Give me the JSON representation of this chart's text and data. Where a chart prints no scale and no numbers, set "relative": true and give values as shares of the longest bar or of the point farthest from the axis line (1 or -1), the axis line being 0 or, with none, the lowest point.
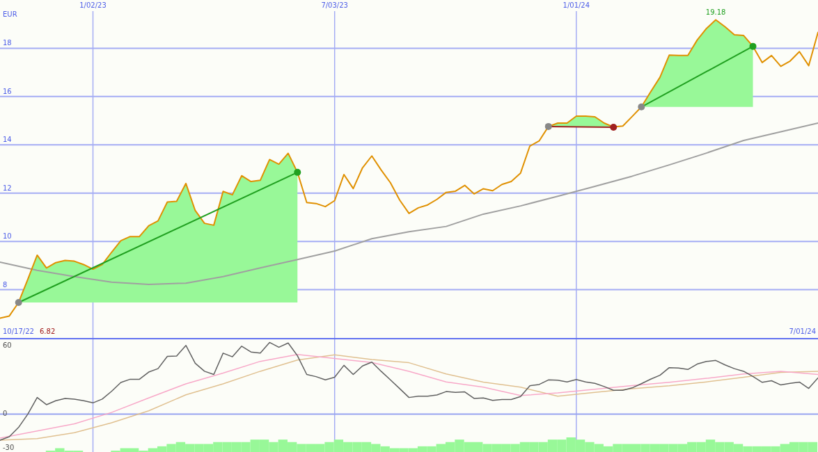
{
  "chart_data": [
    {
      "type": "line",
      "ylabel": "EUR",
      "xlim": [
        "2022-10-24",
        "2024-07-01"
      ],
      "xticks": [
        {
          "value": "2023-01-02",
          "label": "1/02/23"
        },
        {
          "value": "2023-07-03",
          "label": "7/03/23"
        },
        {
          "value": "2024-01-01",
          "label": "1/01/24"
        }
      ],
      "ylim": [
        6,
        20
      ],
      "yticks": [
        8,
        10,
        12,
        14,
        16,
        18
      ],
      "grid": true,
      "annotations": [
        "10/17/22",
        "6.82",
        "7/01/24",
        {
          "text": "19.18",
          "x": "2024-04-15",
          "y": 19.18
        }
      ],
      "x": [
        "2022-10-24",
        "2022-10-31",
        "2022-11-07",
        "2022-11-14",
        "2022-11-21",
        "2022-11-28",
        "2022-12-05",
        "2022-12-12",
        "2022-12-19",
        "2022-12-26",
        "2023-01-02",
        "2023-01-09",
        "2023-01-16",
        "2023-01-23",
        "2023-01-30",
        "2023-02-06",
        "2023-02-13",
        "2023-02-20",
        "2023-02-27",
        "2023-03-06",
        "2023-03-13",
        "2023-03-20",
        "2023-03-27",
        "2023-04-03",
        "2023-04-10",
        "2023-04-17",
        "2023-04-24",
        "2023-05-01",
        "2023-05-08",
        "2023-05-15",
        "2023-05-22",
        "2023-05-29",
        "2023-06-05",
        "2023-06-12",
        "2023-06-19",
        "2023-06-26",
        "2023-07-03",
        "2023-07-10",
        "2023-07-17",
        "2023-07-24",
        "2023-07-31",
        "2023-08-07",
        "2023-08-14",
        "2023-08-21",
        "2023-08-28",
        "2023-09-04",
        "2023-09-11",
        "2023-09-18",
        "2023-09-25",
        "2023-10-02",
        "2023-10-09",
        "2023-10-16",
        "2023-10-23",
        "2023-10-30",
        "2023-11-06",
        "2023-11-13",
        "2023-11-20",
        "2023-11-27",
        "2023-12-04",
        "2023-12-11",
        "2023-12-18",
        "2023-12-25",
        "2024-01-01",
        "2024-01-08",
        "2024-01-15",
        "2024-01-22",
        "2024-01-29",
        "2024-02-05",
        "2024-02-12",
        "2024-02-19",
        "2024-02-26",
        "2024-03-04",
        "2024-03-11",
        "2024-03-18",
        "2024-03-25",
        "2024-04-01",
        "2024-04-08",
        "2024-04-15",
        "2024-04-22",
        "2024-04-29",
        "2024-05-06",
        "2024-05-13",
        "2024-05-20",
        "2024-05-27",
        "2024-06-03",
        "2024-06-10",
        "2024-06-17",
        "2024-06-24",
        "2024-07-01"
      ],
      "series": [
        {
          "type": "line",
          "color": "#a0a0a0",
          "x": [
            "2022-10-24",
            "2022-11-21",
            "2022-12-19",
            "2023-01-16",
            "2023-02-13",
            "2023-03-13",
            "2023-04-10",
            "2023-05-08",
            "2023-06-05",
            "2023-07-03",
            "2023-07-31",
            "2023-08-28",
            "2023-09-25",
            "2023-10-23",
            "2023-11-20",
            "2023-12-18",
            "2024-01-15",
            "2024-02-12",
            "2024-03-11",
            "2024-04-08",
            "2024-05-06",
            "2024-06-03",
            "2024-07-01"
          ],
          "values": [
            9.14,
            8.8,
            8.54,
            8.31,
            8.22,
            8.27,
            8.54,
            8.9,
            9.25,
            9.6,
            10.11,
            10.4,
            10.62,
            11.13,
            11.47,
            11.87,
            12.28,
            12.7,
            13.17,
            13.66,
            14.18,
            14.54,
            14.9
          ]
        },
        {
          "color": "#e09000",
          "values": [
            6.82,
            6.91,
            7.47,
            8.44,
            9.43,
            8.9,
            9.12,
            9.21,
            9.18,
            9.04,
            8.85,
            9.04,
            9.55,
            10.03,
            10.2,
            10.2,
            10.65,
            10.85,
            11.63,
            11.66,
            12.4,
            11.28,
            10.75,
            10.67,
            12.07,
            11.93,
            12.72,
            12.48,
            12.53,
            13.39,
            13.2,
            13.65,
            12.86,
            11.61,
            11.57,
            11.44,
            11.69,
            12.77,
            12.19,
            13.05,
            13.54,
            12.96,
            12.43,
            11.71,
            11.16,
            11.39,
            11.51,
            11.74,
            12.03,
            12.08,
            12.32,
            11.97,
            12.18,
            12.1,
            12.36,
            12.48,
            12.83,
            13.95,
            14.16,
            14.76,
            14.9,
            14.9,
            15.19,
            15.19,
            15.16,
            14.9,
            14.74,
            14.78,
            15.17,
            15.57,
            16.2,
            16.8,
            17.72,
            17.7,
            17.7,
            18.34,
            18.82,
            19.18,
            18.89,
            18.56,
            18.53,
            18.08,
            17.41,
            17.7,
            17.25,
            17.47,
            17.86,
            17.28,
            18.66
          ],
          "lower": [
            null,
            null,
            7.47,
            7.47,
            7.47,
            7.47,
            7.47,
            7.47,
            7.47,
            7.47,
            7.47,
            7.47,
            7.47,
            7.47,
            7.47,
            7.47,
            7.47,
            7.47,
            7.47,
            7.47,
            7.47,
            7.47,
            7.47,
            7.47,
            7.47,
            7.47,
            7.47,
            7.47,
            7.47,
            7.47,
            7.47,
            7.47,
            7.47,
            null,
            null,
            null,
            null,
            null,
            null,
            null,
            null,
            null,
            null,
            null,
            null,
            null,
            null,
            null,
            null,
            null,
            null,
            null,
            null,
            null,
            null,
            null,
            null,
            null,
            null,
            14.76,
            14.76,
            14.76,
            14.76,
            14.76,
            14.76,
            14.76,
            14.76,
            null,
            null,
            15.57,
            15.57,
            15.57,
            15.57,
            15.57,
            15.57,
            15.57,
            15.57,
            15.57,
            15.57,
            15.57,
            15.57,
            15.57,
            null,
            null,
            null,
            null,
            null,
            null,
            null
          ],
          "upper": [
            null,
            null,
            7.47,
            8.44,
            9.43,
            8.9,
            9.12,
            9.21,
            9.18,
            9.04,
            8.85,
            9.04,
            9.55,
            10.03,
            10.2,
            10.2,
            10.65,
            10.85,
            11.63,
            11.66,
            12.4,
            11.28,
            10.75,
            10.67,
            12.07,
            11.93,
            12.72,
            12.48,
            12.53,
            13.39,
            13.2,
            13.65,
            12.86,
            null,
            null,
            null,
            null,
            null,
            null,
            null,
            null,
            null,
            null,
            null,
            null,
            null,
            null,
            null,
            null,
            null,
            null,
            null,
            null,
            null,
            null,
            null,
            null,
            null,
            null,
            14.76,
            14.9,
            14.9,
            15.19,
            15.19,
            15.16,
            14.9,
            14.74,
            null,
            null,
            15.57,
            16.2,
            16.8,
            17.72,
            17.7,
            17.7,
            18.34,
            18.82,
            19.18,
            18.89,
            18.56,
            18.53,
            18.08,
            null,
            null,
            null,
            null,
            null,
            null,
            null
          ]
        },
        {
          "type": "line",
          "color": "#20a020",
          "marker": "circle",
          "x": [
            "2022-11-07",
            "2023-06-05",
            "2023-09-25",
            "2024-02-19",
            "2024-05-13"
          ],
          "values": [
            7.47,
            12.86,
            null,
            15.57,
            18.08
          ]
        },
        {
          "type": "line",
          "color": "#a02020",
          "marker": "circle",
          "x": [
            "2023-12-11",
            "2024-01-29"
          ],
          "values": [
            14.76,
            14.73
          ]
        }
      ]
    },
    {
      "type": "line",
      "xlim": [
        "2022-10-24",
        "2024-07-01"
      ],
      "xticks": [
        {
          "value": "2023-01-02",
          "label": null
        },
        {
          "value": "2023-07-03",
          "label": null
        },
        {
          "value": "2024-01-01",
          "label": null
        }
      ],
      "ylim": [
        -33.3,
        65.5
      ],
      "yticks": [
        -30,
        0,
        60
      ],
      "tick_labels": "y",
      "grid": "x",
      "ref_lines": [
        {
          "axis": "y",
          "value": 0,
          "color": "#98a4f0"
        }
      ],
      "x": [
        "2022-10-24",
        "2022-10-31",
        "2022-11-07",
        "2022-11-14",
        "2022-11-21",
        "2022-11-28",
        "2022-12-05",
        "2022-12-12",
        "2022-12-19",
        "2022-12-26",
        "2023-01-02",
        "2023-01-09",
        "2023-01-16",
        "2023-01-23",
        "2023-01-30",
        "2023-02-06",
        "2023-02-13",
        "2023-02-20",
        "2023-02-27",
        "2023-03-06",
        "2023-03-13",
        "2023-03-20",
        "2023-03-27",
        "2023-04-03",
        "2023-04-10",
        "2023-04-17",
        "2023-04-24",
        "2023-05-01",
        "2023-05-08",
        "2023-05-15",
        "2023-05-22",
        "2023-05-29",
        "2023-06-05",
        "2023-06-12",
        "2023-06-19",
        "2023-06-26",
        "2023-07-03",
        "2023-07-10",
        "2023-07-17",
        "2023-07-24",
        "2023-07-31",
        "2023-08-07",
        "2023-08-14",
        "2023-08-21",
        "2023-08-28",
        "2023-09-04",
        "2023-09-11",
        "2023-09-18",
        "2023-09-25",
        "2023-10-02",
        "2023-10-09",
        "2023-10-16",
        "2023-10-23",
        "2023-10-30",
        "2023-11-06",
        "2023-11-13",
        "2023-11-20",
        "2023-11-27",
        "2023-12-04",
        "2023-12-11",
        "2023-12-18",
        "2023-12-25",
        "2024-01-01",
        "2024-01-08",
        "2024-01-15",
        "2024-01-22",
        "2024-01-29",
        "2024-02-05",
        "2024-02-12",
        "2024-02-19",
        "2024-02-26",
        "2024-03-04",
        "2024-03-11",
        "2024-03-18",
        "2024-03-25",
        "2024-04-01",
        "2024-04-08",
        "2024-04-15",
        "2024-04-22",
        "2024-04-29",
        "2024-05-06",
        "2024-05-13",
        "2024-05-20",
        "2024-05-27",
        "2024-06-03",
        "2024-06-10",
        "2024-06-17",
        "2024-06-24",
        "2024-07-01"
      ],
      "series": [
        {
          "type": "line",
          "color": "#e0c090",
          "x": [
            "2022-10-24",
            "2022-11-21",
            "2022-12-19",
            "2023-01-16",
            "2023-02-13",
            "2023-03-13",
            "2023-04-10",
            "2023-05-08",
            "2023-06-05",
            "2023-07-03",
            "2023-07-31",
            "2023-08-28",
            "2023-09-25",
            "2023-10-23",
            "2023-11-20",
            "2023-12-18",
            "2024-01-15",
            "2024-02-12",
            "2024-03-11",
            "2024-04-08",
            "2024-05-06",
            "2024-06-03",
            "2024-07-01"
          ],
          "values": [
            -23.0,
            -21.6,
            -16.4,
            -7.7,
            2.8,
            16.9,
            26.5,
            37.5,
            47.3,
            52.0,
            47.8,
            45.0,
            35.2,
            28.0,
            23.6,
            15.7,
            19.0,
            22.2,
            24.8,
            28.2,
            32.2,
            36.6,
            37.5
          ]
        },
        {
          "type": "line",
          "color": "#f8a8c8",
          "x": [
            "2022-10-24",
            "2022-11-21",
            "2022-12-19",
            "2023-01-16",
            "2023-02-13",
            "2023-03-13",
            "2023-04-10",
            "2023-05-08",
            "2023-06-05",
            "2023-07-03",
            "2023-07-31",
            "2023-08-28",
            "2023-09-25",
            "2023-10-23",
            "2023-11-20",
            "2023-12-18",
            "2024-01-15",
            "2024-02-12",
            "2024-03-11",
            "2024-04-08",
            "2024-05-06",
            "2024-06-03",
            "2024-07-01"
          ],
          "values": [
            -21.1,
            -14.8,
            -8.6,
            1.4,
            14.1,
            26.5,
            35.9,
            46.2,
            52.3,
            48.7,
            45.2,
            37.4,
            28.2,
            23.6,
            16.2,
            18.5,
            21.8,
            25.0,
            27.8,
            31.3,
            35.2,
            37.5,
            34.7
          ]
        },
        {
          "color": "#606060",
          "values": [
            -23.0,
            -19.9,
            -11.7,
            0.0,
            14.5,
            8.2,
            11.7,
            13.6,
            13.1,
            11.7,
            9.8,
            13.1,
            19.9,
            27.7,
            30.5,
            30.5,
            36.8,
            39.8,
            50.6,
            50.9,
            60.2,
            44.5,
            37.5,
            34.7,
            53.4,
            50.2,
            59.5,
            54.4,
            53.4,
            62.8,
            58.6,
            62.3,
            51.1,
            34.7,
            32.8,
            30.0,
            32.3,
            42.7,
            34.7,
            42.2,
            45.5,
            37.5,
            30.0,
            22.3,
            14.5,
            15.7,
            15.7,
            16.7,
            19.7,
            19.0,
            19.4,
            13.7,
            14.1,
            12.0,
            12.7,
            12.7,
            15.3,
            24.8,
            25.9,
            29.9,
            29.6,
            28.2,
            30.3,
            28.2,
            26.9,
            24.1,
            20.8,
            20.8,
            22.9,
            26.6,
            30.6,
            34.0,
            40.7,
            40.3,
            39.1,
            43.8,
            46.1,
            47.0,
            43.1,
            39.8,
            37.5,
            32.9,
            27.8,
            29.2,
            25.5,
            26.9,
            28.0,
            22.5,
            31.7
          ]
        }
      ]
    },
    {
      "type": "bar",
      "relative": true,
      "tick_labels": false,
      "xlim": [
        "2022-10-24",
        "2024-07-01"
      ],
      "color": "#98f898",
      "x": [
        "2022-12-01",
        "2022-12-08",
        "2022-12-15",
        "2022-12-22",
        "2022-12-29",
        "2023-01-05",
        "2023-01-12",
        "2023-01-19",
        "2023-01-26",
        "2023-02-02",
        "2023-02-09",
        "2023-02-16",
        "2023-02-23",
        "2023-03-02",
        "2023-03-09",
        "2023-03-16",
        "2023-03-23",
        "2023-03-30",
        "2023-04-06",
        "2023-04-13",
        "2023-04-20",
        "2023-04-27",
        "2023-05-04",
        "2023-05-11",
        "2023-05-18",
        "2023-05-25",
        "2023-06-01",
        "2023-06-08",
        "2023-06-15",
        "2023-06-22",
        "2023-06-29",
        "2023-07-06",
        "2023-07-13",
        "2023-07-20",
        "2023-07-27",
        "2023-08-03",
        "2023-08-10",
        "2023-08-17",
        "2023-08-24",
        "2023-08-31",
        "2023-09-07",
        "2023-09-14",
        "2023-09-21",
        "2023-09-28",
        "2023-10-05",
        "2023-10-12",
        "2023-10-19",
        "2023-10-26",
        "2023-11-02",
        "2023-11-09",
        "2023-11-16",
        "2023-11-23",
        "2023-11-30",
        "2023-12-07",
        "2023-12-14",
        "2023-12-21",
        "2023-12-28",
        "2024-01-04",
        "2024-01-11",
        "2024-01-18",
        "2024-01-25",
        "2024-02-01",
        "2024-02-08",
        "2024-02-15",
        "2024-02-22",
        "2024-02-29",
        "2024-03-07",
        "2024-03-14",
        "2024-03-21",
        "2024-03-28",
        "2024-04-04",
        "2024-04-11",
        "2024-04-18",
        "2024-04-25",
        "2024-05-02",
        "2024-05-09",
        "2024-05-16",
        "2024-05-23",
        "2024-05-30",
        "2024-06-06",
        "2024-06-13",
        "2024-06-20",
        "2024-06-27"
      ],
      "values": [
        0.09,
        0.26,
        0.09,
        0.09,
        null,
        null,
        null,
        0.09,
        0.26,
        0.26,
        0.09,
        0.26,
        0.39,
        0.55,
        0.68,
        0.55,
        0.55,
        0.55,
        0.68,
        0.68,
        0.68,
        0.68,
        0.85,
        0.85,
        0.68,
        0.85,
        0.68,
        0.55,
        0.55,
        0.55,
        0.68,
        0.85,
        0.68,
        0.68,
        0.68,
        0.55,
        0.39,
        0.26,
        0.26,
        0.26,
        0.39,
        0.39,
        0.55,
        0.68,
        0.85,
        0.68,
        0.68,
        0.55,
        0.55,
        0.55,
        0.55,
        0.68,
        0.68,
        0.68,
        0.85,
        0.85,
        1,
        0.85,
        0.68,
        0.55,
        0.39,
        0.55,
        0.55,
        0.55,
        0.55,
        0.55,
        0.55,
        0.55,
        0.55,
        0.68,
        0.68,
        0.85,
        0.68,
        0.68,
        0.55,
        0.39,
        0.39,
        0.39,
        0.39,
        0.55,
        0.68,
        0.68,
        0.68
      ]
    }
  ]
}
